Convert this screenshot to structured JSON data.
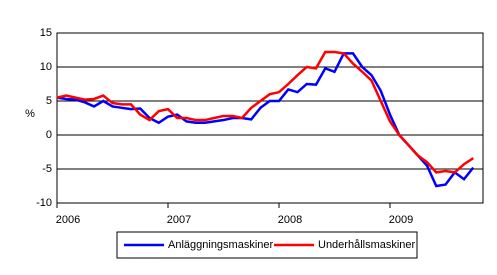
{
  "chart_data": {
    "type": "line",
    "y_label": "%",
    "categories": [
      "2006",
      null,
      null,
      null,
      null,
      null,
      null,
      null,
      null,
      null,
      null,
      null,
      "2007",
      null,
      null,
      null,
      null,
      null,
      null,
      null,
      null,
      null,
      null,
      null,
      "2008",
      null,
      null,
      null,
      null,
      null,
      null,
      null,
      null,
      null,
      null,
      null,
      "2009",
      null,
      null,
      null,
      null,
      null,
      null,
      null,
      null,
      null
    ],
    "series": [
      {
        "name": "Anläggningsmaskiner",
        "color": "#0000ff",
        "values": [
          5.5,
          5.3,
          5.2,
          4.8,
          4.2,
          5.0,
          4.2,
          4.0,
          3.8,
          3.9,
          2.5,
          1.8,
          2.7,
          3.0,
          2.0,
          1.8,
          1.8,
          2.0,
          2.2,
          2.5,
          2.5,
          2.3,
          4.0,
          5.0,
          5.0,
          6.7,
          6.3,
          7.5,
          7.4,
          9.8,
          9.3,
          12.0,
          12.0,
          10.0,
          8.8,
          6.5,
          3.0,
          0.0,
          -1.5,
          -3.0,
          -4.5,
          -7.5,
          -7.3,
          -5.5,
          -6.5,
          -4.8
        ]
      },
      {
        "name": "Underhållsmaskiner",
        "color": "#ff0000",
        "values": [
          5.5,
          5.8,
          5.5,
          5.2,
          5.3,
          5.8,
          4.7,
          4.5,
          4.5,
          3.0,
          2.2,
          3.5,
          3.8,
          2.5,
          2.5,
          2.2,
          2.2,
          2.5,
          2.8,
          2.8,
          2.5,
          4.0,
          5.0,
          6.0,
          6.3,
          7.5,
          8.8,
          10.0,
          9.8,
          12.2,
          12.2,
          12.0,
          10.5,
          9.3,
          8.0,
          5.0,
          2.0,
          0.0,
          -1.5,
          -3.0,
          -4.0,
          -5.5,
          -5.3,
          -5.5,
          -4.3,
          -3.4
        ]
      }
    ],
    "ylim": [
      -10,
      15
    ],
    "yticks": [
      -10,
      -5,
      0,
      5,
      10,
      15
    ],
    "grid": true
  }
}
